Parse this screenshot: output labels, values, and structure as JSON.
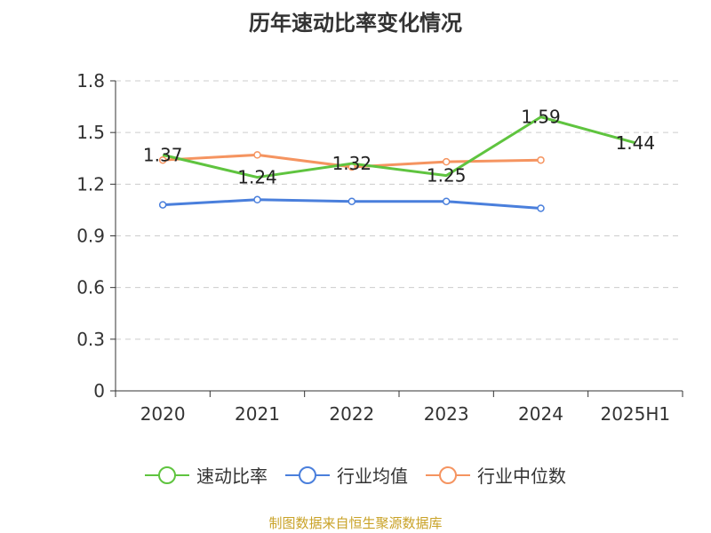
{
  "chart_data": {
    "type": "line",
    "title": "历年速动比率变化情况",
    "categories": [
      "2020",
      "2021",
      "2022",
      "2023",
      "2024",
      "2025H1"
    ],
    "yticks": [
      "0",
      "0.3",
      "0.6",
      "0.9",
      "1.2",
      "1.5",
      "1.8"
    ],
    "ylim": [
      0,
      1.8
    ],
    "grid": true,
    "legend_position": "bottom",
    "series": [
      {
        "name": "速动比率",
        "color": "#5fc43f",
        "values": [
          1.37,
          1.24,
          1.32,
          1.25,
          1.59,
          1.44
        ],
        "show_labels": true,
        "show_markers": false
      },
      {
        "name": "行业均值",
        "color": "#4a7fdc",
        "values": [
          1.08,
          1.11,
          1.1,
          1.1,
          1.06,
          null
        ],
        "show_labels": false,
        "show_markers": true
      },
      {
        "name": "行业中位数",
        "color": "#f59460",
        "values": [
          1.34,
          1.37,
          1.3,
          1.33,
          1.34,
          null
        ],
        "show_labels": false,
        "show_markers": true
      }
    ],
    "data_labels": [
      "1.37",
      "1.24",
      "1.32",
      "1.25",
      "1.59",
      "1.44"
    ]
  },
  "footer": {
    "source": "制图数据来自恒生聚源数据库"
  }
}
